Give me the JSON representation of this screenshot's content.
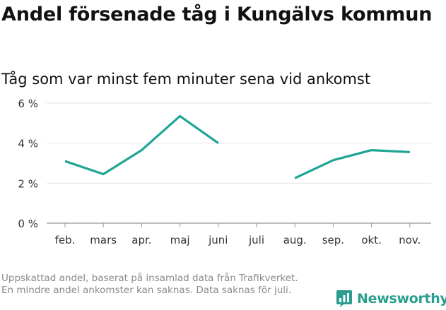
{
  "header": {
    "title": "Andel försenade tåg i Kungälvs kommun",
    "subtitle": "Tåg som var minst fem minuter sena vid ankomst"
  },
  "footnote": "Uppskattad andel, baserat på insamlad data från Trafikverket. En mindre andel ankomster kan saknas. Data saknas för juli.",
  "logo": {
    "text": "Newsworthy"
  },
  "colors": {
    "line": "#1fa594",
    "grid": "#e2e2e2",
    "axis": "#999999",
    "text": "#333333"
  },
  "chart_data": {
    "type": "line",
    "title": "Andel försenade tåg i Kungälvs kommun",
    "subtitle": "Tåg som var minst fem minuter sena vid ankomst",
    "categories": [
      "feb.",
      "mars",
      "apr.",
      "maj",
      "juni",
      "juli",
      "aug.",
      "sep.",
      "okt.",
      "nov."
    ],
    "series": [
      {
        "name": "Andel försenade tåg",
        "values": [
          3.1,
          2.45,
          3.65,
          5.35,
          4.0,
          null,
          2.25,
          3.15,
          3.65,
          3.55
        ]
      }
    ],
    "yticks": [
      0,
      2,
      4,
      6
    ],
    "ytick_labels": [
      "0 %",
      "2 %",
      "4 %",
      "6 %"
    ],
    "ylim": [
      0,
      6
    ],
    "xlabel": "",
    "ylabel": "",
    "grid": true,
    "legend": "none"
  }
}
